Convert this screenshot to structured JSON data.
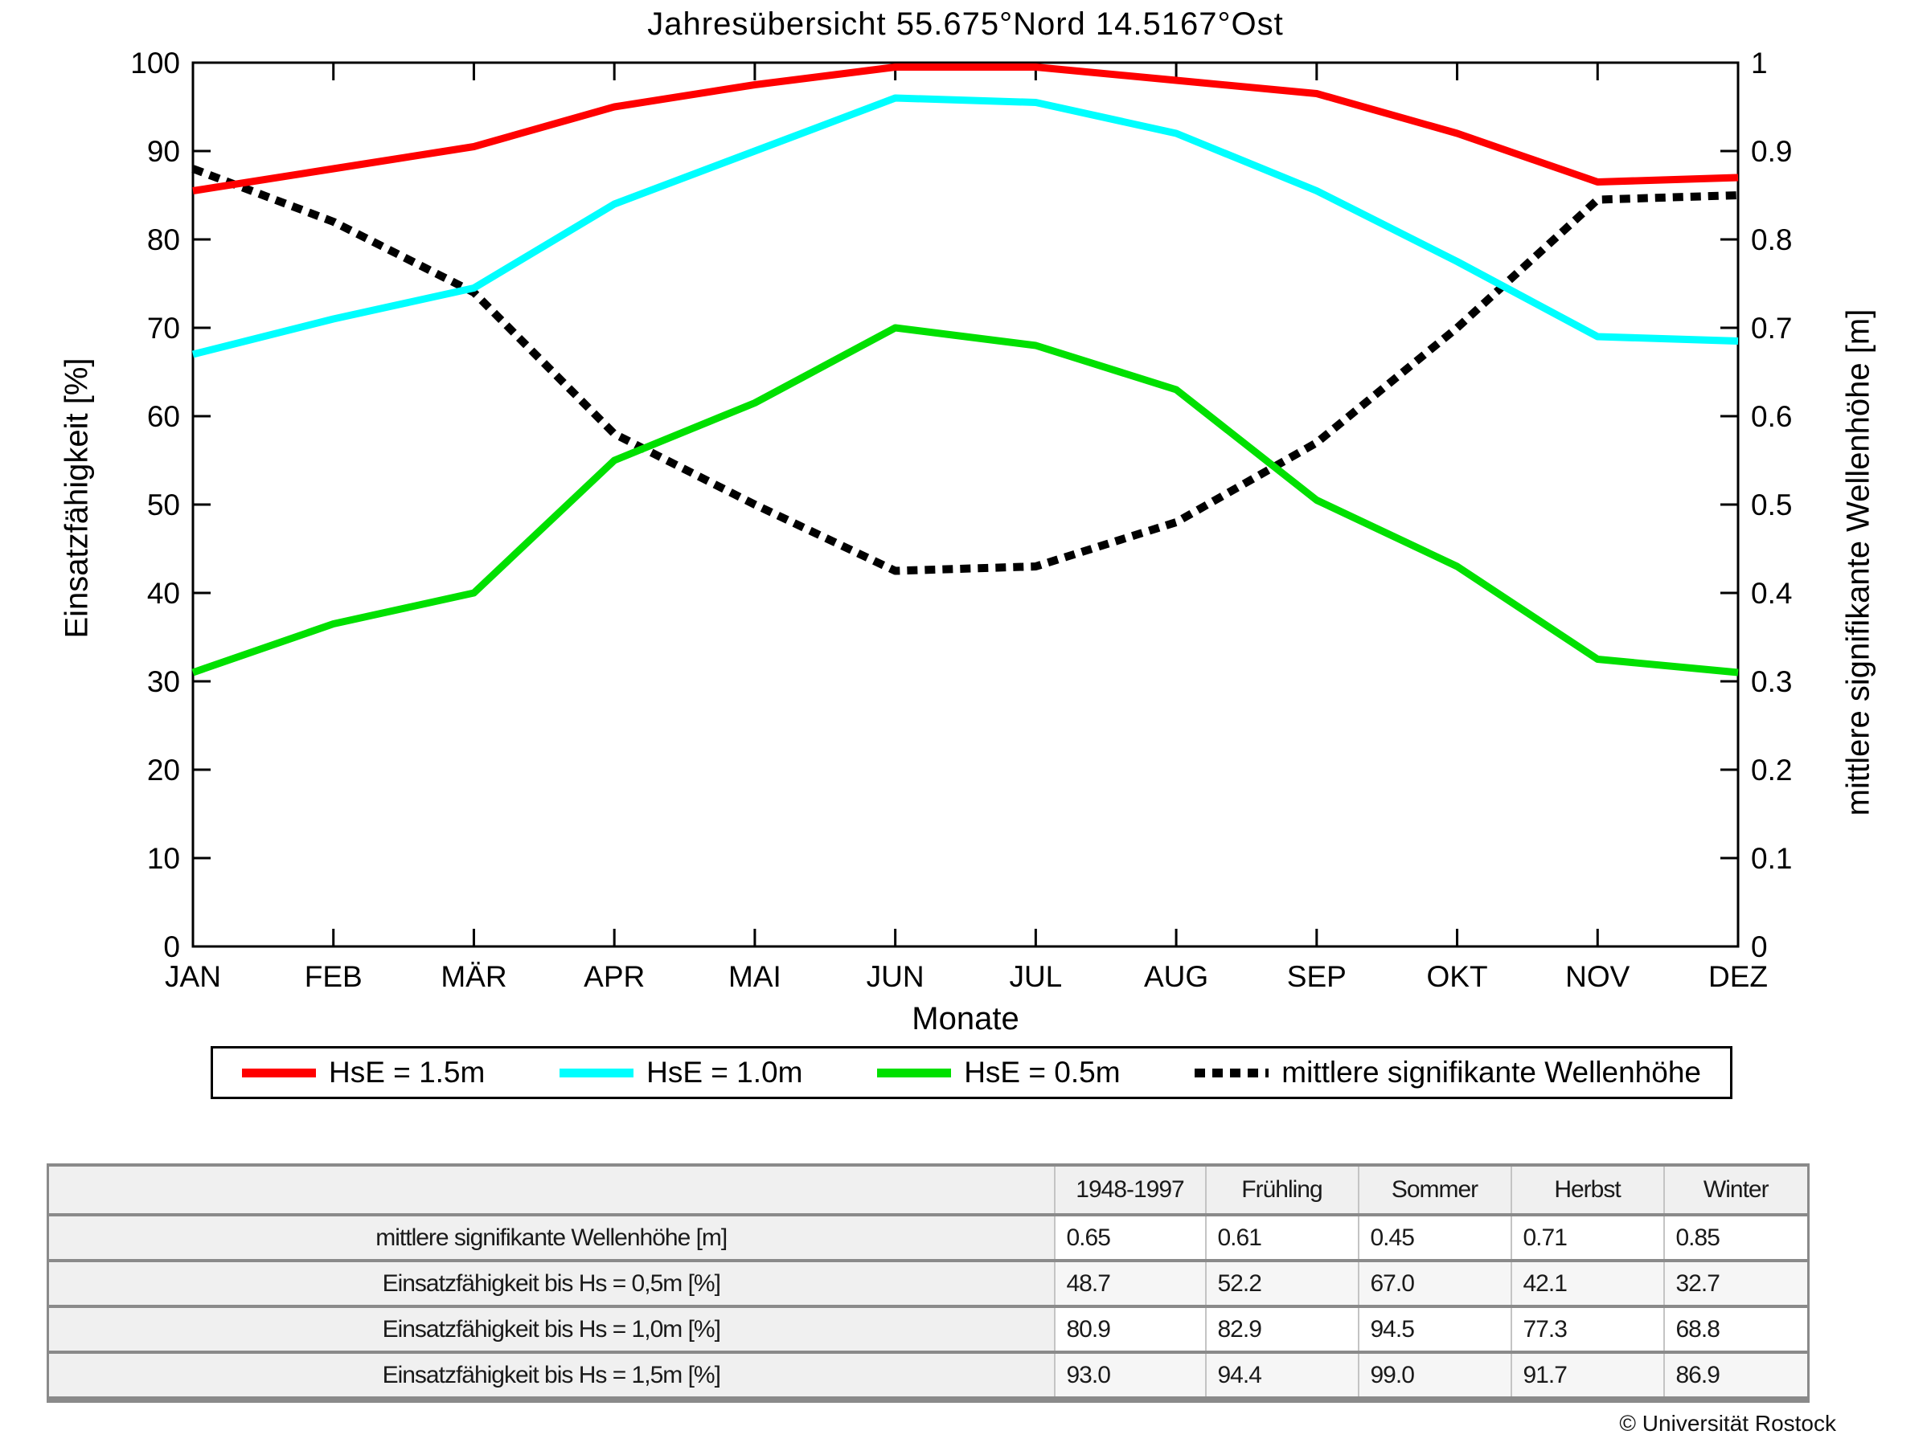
{
  "title": "Jahresübersicht  55.675°Nord  14.5167°Ost",
  "chart_data": {
    "type": "line",
    "categories": [
      "JAN",
      "FEB",
      "MÄR",
      "APR",
      "MAI",
      "JUN",
      "JUL",
      "AUG",
      "SEP",
      "OKT",
      "NOV",
      "DEZ"
    ],
    "xlabel": "Monate",
    "ylabel_left": "Einsatzfähigkeit [%]",
    "ylabel_right": "mittlere signifikante Wellenhöhe [m]",
    "ylim_left": [
      0,
      100
    ],
    "ylim_right": [
      0,
      1
    ],
    "yticks_left": [
      0,
      10,
      20,
      30,
      40,
      50,
      60,
      70,
      80,
      90,
      100
    ],
    "yticks_right": [
      0,
      0.1,
      0.2,
      0.3,
      0.4,
      0.5,
      0.6,
      0.7,
      0.8,
      0.9,
      1
    ],
    "grid": false,
    "legend_position": "bottom",
    "series": [
      {
        "name": "HsE = 1.5m",
        "color": "#ff0000",
        "style": "solid",
        "axis": "left",
        "values": [
          85.5,
          88,
          90.5,
          95,
          97.5,
          99.5,
          99.5,
          98,
          96.5,
          92,
          86.5,
          87
        ]
      },
      {
        "name": "HsE = 1.0m",
        "color": "#00ffff",
        "style": "solid",
        "axis": "left",
        "values": [
          67,
          71,
          74.5,
          84,
          90,
          96,
          95.5,
          92,
          85.5,
          77.5,
          69,
          68.5
        ]
      },
      {
        "name": "HsE = 0.5m",
        "color": "#00e000",
        "style": "solid",
        "axis": "left",
        "values": [
          31,
          36.5,
          40,
          55,
          61.5,
          70,
          68,
          63,
          50.5,
          43,
          32.5,
          31
        ]
      },
      {
        "name": "mittlere signifikante Wellenhöhe",
        "color": "#000000",
        "style": "dotted",
        "axis": "right",
        "values": [
          0.88,
          0.82,
          0.74,
          0.58,
          0.5,
          0.425,
          0.43,
          0.48,
          0.57,
          0.7,
          0.845,
          0.85
        ]
      }
    ]
  },
  "table": {
    "column_headers": [
      "1948-1997",
      "Frühling",
      "Sommer",
      "Herbst",
      "Winter"
    ],
    "rows": [
      {
        "label": "mittlere signifikante Wellenhöhe [m]",
        "values": [
          "0.65",
          "0.61",
          "0.45",
          "0.71",
          "0.85"
        ]
      },
      {
        "label": "Einsatzfähigkeit bis Hs = 0,5m [%]",
        "values": [
          "48.7",
          "52.2",
          "67.0",
          "42.1",
          "32.7"
        ]
      },
      {
        "label": "Einsatzfähigkeit bis Hs = 1,0m [%]",
        "values": [
          "80.9",
          "82.9",
          "94.5",
          "77.3",
          "68.8"
        ]
      },
      {
        "label": "Einsatzfähigkeit bis Hs = 1,5m [%]",
        "values": [
          "93.0",
          "94.4",
          "99.0",
          "91.7",
          "86.9"
        ]
      }
    ]
  },
  "footer": {
    "copyright": "© Universität Rostock"
  }
}
